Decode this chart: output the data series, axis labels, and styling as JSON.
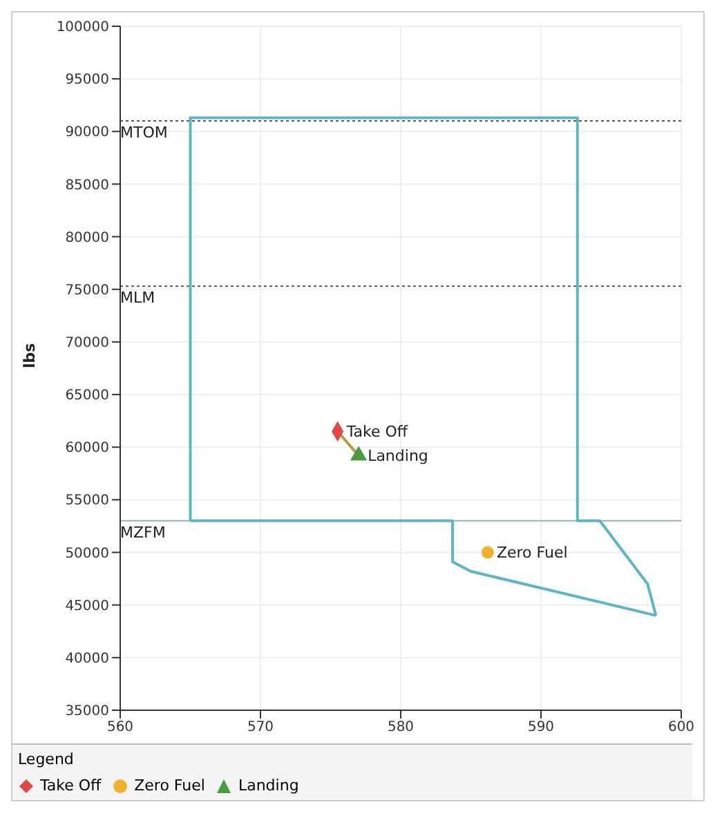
{
  "chart_data": {
    "type": "scatter",
    "ylabel": "lbs",
    "legend_title": "Legend",
    "legend": "bottom",
    "grid": true,
    "xlim": [
      560,
      600
    ],
    "xticks": [
      560,
      570,
      580,
      590,
      600
    ],
    "ylim": [
      35000,
      100000
    ],
    "yticks": [
      35000,
      40000,
      45000,
      50000,
      55000,
      60000,
      65000,
      70000,
      75000,
      80000,
      85000,
      90000,
      95000,
      100000
    ],
    "ref_lines": [
      {
        "axis": "y",
        "value": 91000,
        "label": "MTOM",
        "color": "#555555",
        "line_style": "dotted"
      },
      {
        "axis": "y",
        "value": 75300,
        "label": "MLM",
        "color": "#555555",
        "line_style": "dotted"
      },
      {
        "axis": "y",
        "value": 53000,
        "label": "MZFM",
        "color": "#9ab0b8",
        "line_style": "solid"
      }
    ],
    "series": [
      {
        "type": "line",
        "color": "#5fb4c8",
        "marker": "none",
        "x": [
          565,
          565,
          592.6,
          592.6,
          594.2,
          597.6,
          598.2
        ],
        "values": [
          53000,
          91300,
          91300,
          53000,
          53000,
          47000,
          44000
        ]
      },
      {
        "type": "line",
        "color": "#5fb4c8",
        "marker": "none",
        "x": [
          565,
          583.7,
          583.7,
          585,
          598.2
        ],
        "values": [
          53000,
          53000,
          49100,
          48200,
          44000
        ]
      },
      {
        "type": "line",
        "color": "#b0a040",
        "marker": "none",
        "x": [
          575.5,
          577.0
        ],
        "values": [
          61500,
          59200
        ]
      },
      {
        "name": "Take Off",
        "color": "#e04848",
        "marker": "diamond",
        "x": [
          575.5
        ],
        "values": [
          61500
        ]
      },
      {
        "name": "Zero Fuel",
        "color": "#f0b030",
        "marker": "circle",
        "x": [
          586.2
        ],
        "values": [
          50000
        ]
      },
      {
        "name": "Landing",
        "color": "#4a9a40",
        "marker": "triangle",
        "x": [
          577.0
        ],
        "values": [
          59200
        ]
      }
    ]
  }
}
